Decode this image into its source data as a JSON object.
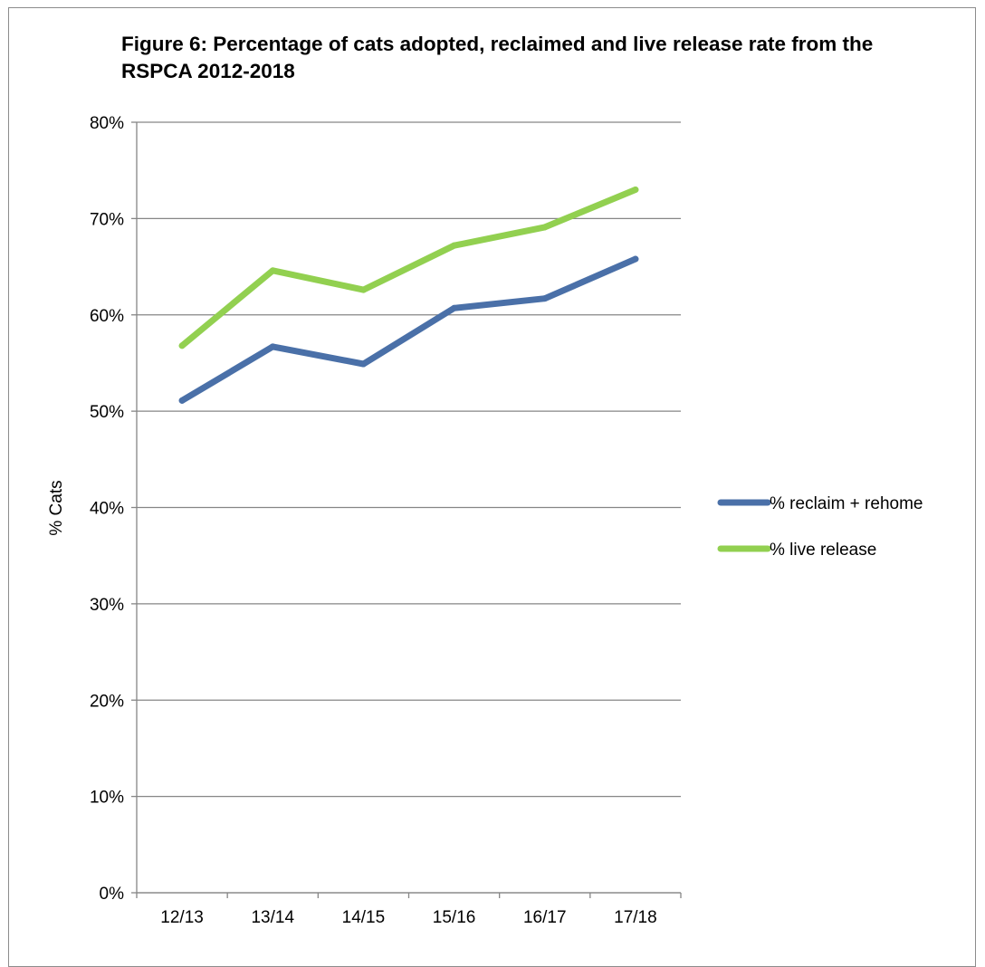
{
  "chart_data": {
    "type": "line",
    "title": "Figure 6: Percentage of cats adopted, reclaimed and live release rate from the RSPCA 2012-2018",
    "xlabel": "",
    "ylabel": "% Cats",
    "categories": [
      "12/13",
      "13/14",
      "14/15",
      "15/16",
      "16/17",
      "17/18"
    ],
    "series": [
      {
        "name": "% reclaim + rehome",
        "values": [
          51.1,
          56.7,
          54.9,
          60.7,
          61.7,
          65.8
        ],
        "color": "#4a70a8"
      },
      {
        "name": "% live release",
        "values": [
          56.8,
          64.6,
          62.6,
          67.2,
          69.1,
          73.0
        ],
        "color": "#92d050"
      }
    ],
    "ylim": [
      0,
      80
    ],
    "y_ticks": [
      0,
      10,
      20,
      30,
      40,
      50,
      60,
      70,
      80
    ],
    "y_tick_format": "percent",
    "grid": true,
    "legend_position": "right",
    "gridline_color": "#868686"
  }
}
